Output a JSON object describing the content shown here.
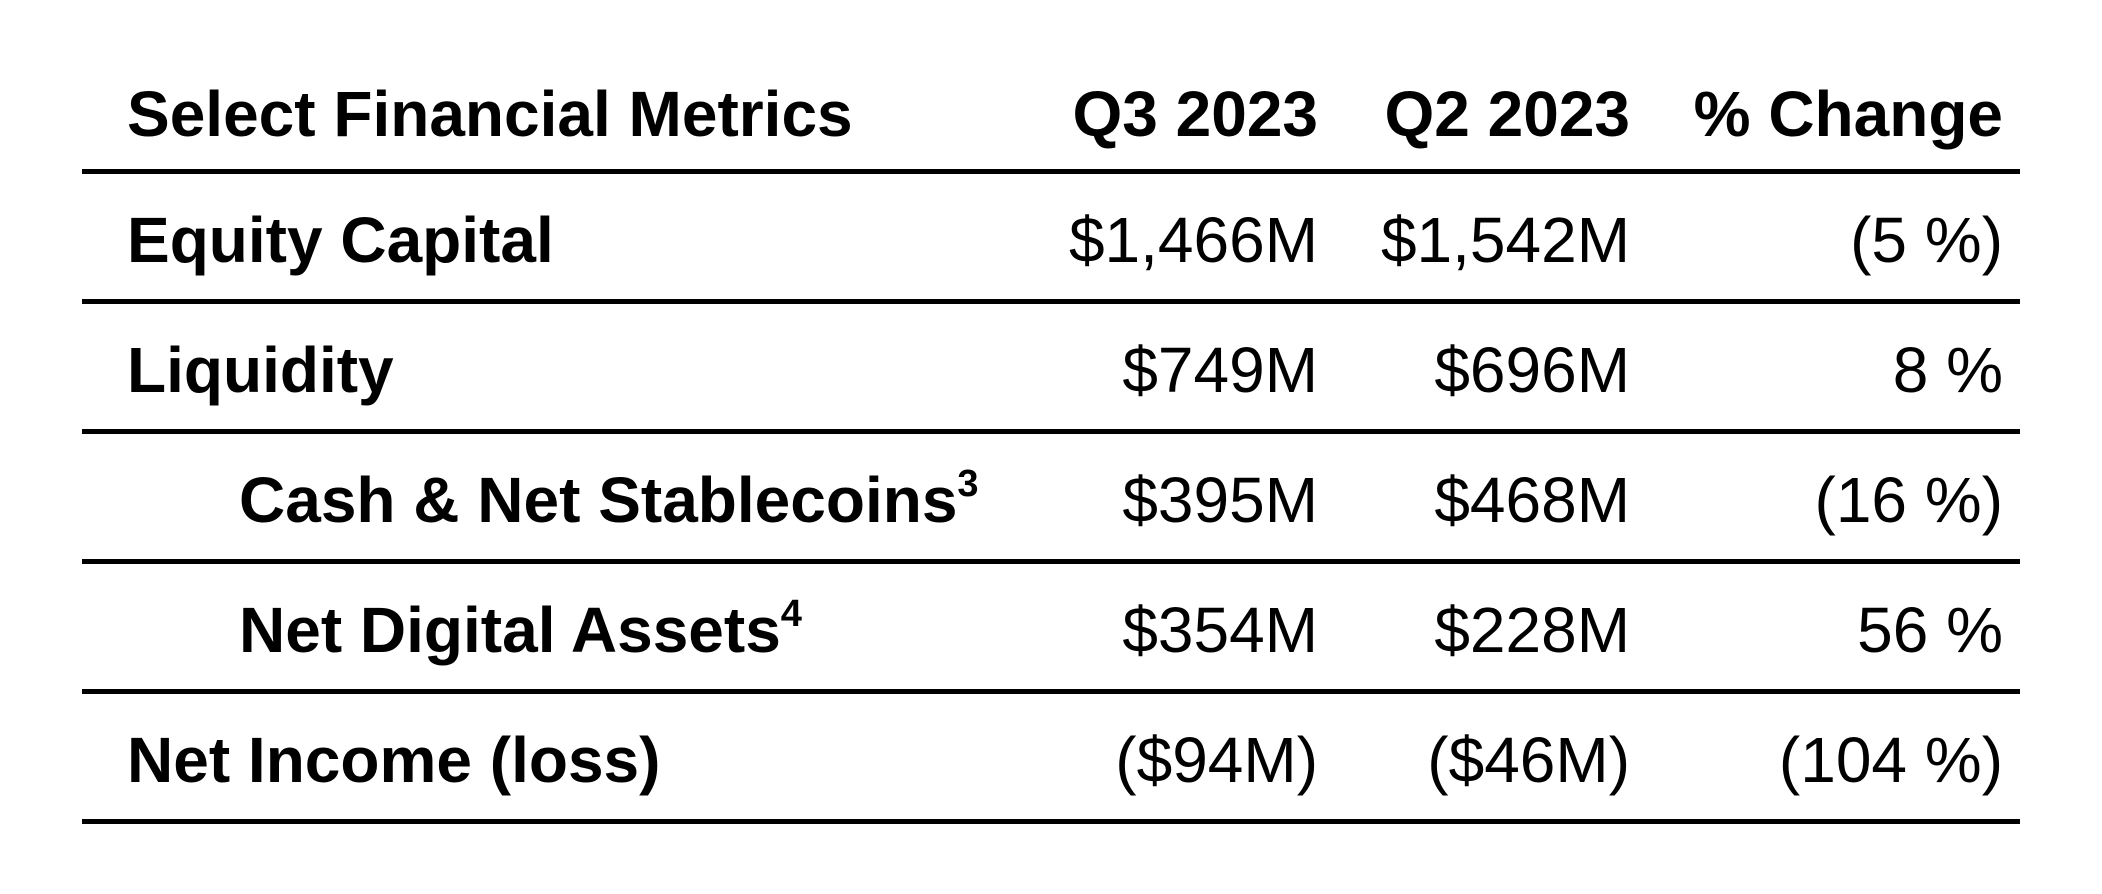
{
  "colors": {
    "text": "#000000",
    "background": "#ffffff",
    "rule": "#000000"
  },
  "table": {
    "header": {
      "metric": "Select Financial Metrics",
      "q3": "Q3 2023",
      "q2": "Q2 2023",
      "change": "% Change"
    },
    "rows": [
      {
        "label": "Equity Capital",
        "sup": "",
        "q3": "$1,466M",
        "q2": "$1,542M",
        "change": "(5 %)"
      },
      {
        "label": "Liquidity",
        "sup": "",
        "q3": "$749M",
        "q2": "$696M",
        "change": "8 %"
      },
      {
        "label": "Cash & Net Stablecoins",
        "sup": "3",
        "q3": "$395M",
        "q2": "$468M",
        "change": "(16 %)"
      },
      {
        "label": "Net Digital Assets",
        "sup": "4",
        "q3": "$354M",
        "q2": "$228M",
        "change": "56 %"
      },
      {
        "label": "Net Income (loss)",
        "sup": "",
        "q3": "($94M)",
        "q2": "($46M)",
        "change": "(104 %)"
      }
    ]
  },
  "chart_data": {
    "type": "table",
    "title": "Select Financial Metrics",
    "columns": [
      "Select Financial Metrics",
      "Q3 2023",
      "Q2 2023",
      "% Change"
    ],
    "rows": [
      [
        "Equity Capital",
        "$1,466M",
        "$1,542M",
        "(5 %)"
      ],
      [
        "Liquidity",
        "$749M",
        "$696M",
        "8 %"
      ],
      [
        "Cash & Net Stablecoins [footnote 3]",
        "$395M",
        "$468M",
        "(16 %)"
      ],
      [
        "Net Digital Assets [footnote 4]",
        "$354M",
        "$228M",
        "56 %"
      ],
      [
        "Net Income (loss)",
        "($94M)",
        "($46M)",
        "(104 %)"
      ]
    ],
    "numeric_values": {
      "unit_values": "millions USD",
      "unit_change": "percent",
      "categories": [
        "Equity Capital",
        "Liquidity",
        "Cash & Net Stablecoins",
        "Net Digital Assets",
        "Net Income (loss)"
      ],
      "series": [
        {
          "name": "Q3 2023",
          "values": [
            1466,
            749,
            395,
            354,
            -94
          ]
        },
        {
          "name": "Q2 2023",
          "values": [
            1542,
            696,
            468,
            228,
            -46
          ]
        },
        {
          "name": "% Change",
          "values": [
            -5,
            8,
            -16,
            56,
            -104
          ]
        }
      ]
    },
    "layout_hints": {
      "value_columns_alignment": "right",
      "label_column_alignment": "left",
      "indented_rows": [
        "Cash & Net Stablecoins",
        "Net Digital Assets"
      ],
      "negative_convention": "parentheses",
      "horizontal_rules_only": true
    }
  }
}
